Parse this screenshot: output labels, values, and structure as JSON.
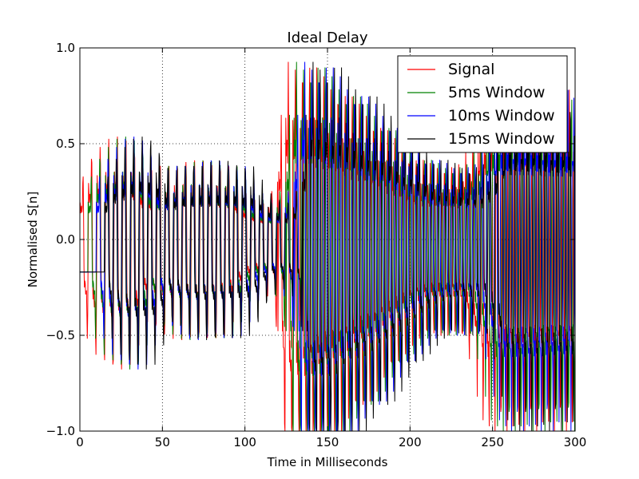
{
  "chart_data": {
    "type": "line",
    "title": "Ideal Delay",
    "xlabel": "Time in Milliseconds",
    "ylabel": "Normalised S[n]",
    "xlim": [
      0,
      300
    ],
    "ylim": [
      -1.0,
      1.0
    ],
    "xticks": [
      0,
      50,
      100,
      150,
      200,
      250,
      300
    ],
    "xtick_labels": [
      "0",
      "50",
      "100",
      "150",
      "200",
      "250",
      "300"
    ],
    "yticks": [
      -1.0,
      -0.5,
      0.0,
      0.5,
      1.0
    ],
    "ytick_labels": [
      "−1.0",
      "−0.5",
      "0.0",
      "0.5",
      "1.0"
    ],
    "grid": true,
    "legend_position": "top-right",
    "series": [
      {
        "name": "Signal",
        "color": "#ff0000",
        "delay_ms": 0
      },
      {
        "name": "5ms Window",
        "color": "#008000",
        "delay_ms": 5
      },
      {
        "name": "10ms Window",
        "color": "#0000ff",
        "delay_ms": 10
      },
      {
        "name": "15ms Window",
        "color": "#000000",
        "delay_ms": 15
      }
    ]
  }
}
